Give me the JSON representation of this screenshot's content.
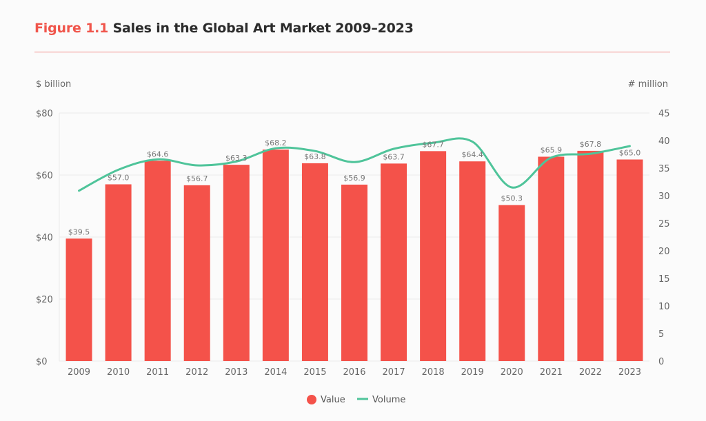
{
  "header": {
    "figure_label": "Figure 1.1",
    "title": "Sales in the Global Art Market 2009–2023"
  },
  "chart_data": {
    "type": "bar",
    "title": "Sales in the Global Art Market 2009–2023",
    "categories": [
      "2009",
      "2010",
      "2011",
      "2012",
      "2013",
      "2014",
      "2015",
      "2016",
      "2017",
      "2018",
      "2019",
      "2020",
      "2021",
      "2022",
      "2023"
    ],
    "series": [
      {
        "name": "Value",
        "type": "bar",
        "axis": "left",
        "color": "#f4524a",
        "values": [
          39.5,
          57.0,
          64.6,
          56.7,
          63.3,
          68.2,
          63.8,
          56.9,
          63.7,
          67.7,
          64.4,
          50.3,
          65.9,
          67.8,
          65.0
        ],
        "data_labels": [
          "$39.5",
          "$57.0",
          "$64.6",
          "$56.7",
          "$63.3",
          "$68.2",
          "$63.8",
          "$56.9",
          "$63.7",
          "$67.7",
          "$64.4",
          "$50.3",
          "$65.9",
          "$67.8",
          "$65.0"
        ]
      },
      {
        "name": "Volume",
        "type": "line",
        "axis": "right",
        "color": "#4fc49a",
        "values": [
          30.9,
          34.7,
          36.6,
          35.5,
          36.2,
          38.6,
          38.1,
          36.1,
          38.5,
          39.6,
          39.8,
          31.5,
          36.9,
          37.6,
          39.0
        ]
      }
    ],
    "y_left": {
      "label": "$ billion",
      "lim": [
        0,
        80
      ],
      "ticks": [
        0,
        20,
        40,
        60,
        80
      ],
      "tick_labels": [
        "$0",
        "$20",
        "$40",
        "$60",
        "$80"
      ]
    },
    "y_right": {
      "label": "# million",
      "lim": [
        0,
        45
      ],
      "ticks": [
        0,
        5,
        10,
        15,
        20,
        25,
        30,
        35,
        40,
        45
      ],
      "tick_labels": [
        "0",
        "5",
        "10",
        "15",
        "20",
        "25",
        "30",
        "35",
        "40",
        "45"
      ]
    },
    "grid": true,
    "legend": {
      "placement": "bottom-center",
      "entries": [
        "Value",
        "Volume"
      ]
    }
  }
}
